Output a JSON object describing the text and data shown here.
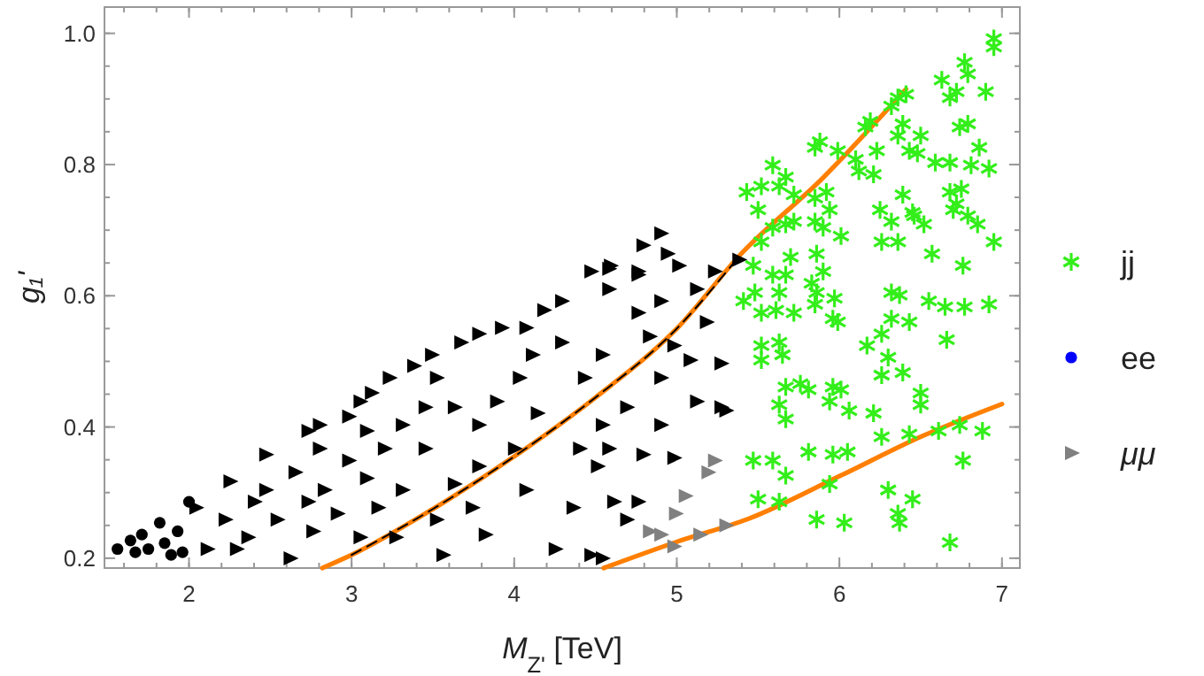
{
  "chart_data": {
    "type": "scatter",
    "xlabel": "M$_{Z'}$ [TeV]",
    "ylabel": "g₁'",
    "xlim": [
      1.48,
      7.11
    ],
    "ylim": [
      0.185,
      1.04
    ],
    "xticks": [
      2,
      3,
      4,
      5,
      6,
      7
    ],
    "yticks": [
      {
        "value": 0.2,
        "label": "0.2"
      },
      {
        "value": 0.4,
        "label": "0.4"
      },
      {
        "value": 0.6,
        "label": "0.6"
      },
      {
        "value": 0.8,
        "label": "0.8"
      },
      {
        "value": 1,
        "label": "1.0"
      }
    ],
    "grid": false,
    "legend": "right",
    "series": [
      {
        "color": "#000000",
        "marker": "circle",
        "x": [
          1.56,
          1.64,
          1.71,
          1.75,
          1.82,
          1.85,
          1.93,
          2.0,
          1.96,
          1.67,
          1.89
        ],
        "values": [
          0.214,
          0.227,
          0.236,
          0.214,
          0.254,
          0.223,
          0.241,
          0.286,
          0.209,
          0.209,
          0.205
        ]
      },
      {
        "color": "#000000",
        "marker": "triangle",
        "x": [
          2.04,
          2.25,
          2.47,
          2.73,
          2.8,
          2.98,
          3.12,
          3.23,
          3.38,
          3.49,
          3.67,
          3.78,
          3.92,
          4.07,
          4.18,
          4.29,
          4.47,
          4.58,
          4.58,
          4.76,
          4.9,
          4.79,
          4.59,
          4.76,
          4.94,
          5.01,
          5.23,
          5.38,
          5.12,
          4.9,
          4.76,
          5.18,
          4.83,
          4.98,
          5.08,
          5.27,
          4.9,
          5.12,
          5.27,
          5.3,
          4.9,
          4.69,
          4.58,
          4.79,
          4.98,
          4.61,
          4.76,
          4.69,
          4.54,
          2.11,
          2.36,
          2.62,
          2.54,
          2.4,
          2.76,
          2.91,
          2.83,
          2.65,
          2.8,
          2.98,
          3.09,
          3.16,
          3.05,
          3.27,
          3.31,
          3.2,
          3.31,
          3.45,
          3.45,
          3.56,
          3.52,
          3.63,
          3.78,
          3.74,
          3.82,
          3.78,
          3.63,
          3.89,
          4.0,
          4.07,
          4.14,
          4.03,
          4.36,
          4.25,
          4.47,
          4.4,
          4.51,
          4.54,
          4.43,
          4.54,
          4.29,
          4.11,
          3.52,
          3.05,
          3.09,
          2.22,
          2.29,
          2.47,
          2.73
        ],
        "values": [
          0.277,
          0.317,
          0.358,
          0.394,
          0.403,
          0.416,
          0.452,
          0.475,
          0.493,
          0.51,
          0.529,
          0.542,
          0.551,
          0.551,
          0.578,
          0.592,
          0.637,
          0.641,
          0.61,
          0.632,
          0.695,
          0.677,
          0.646,
          0.637,
          0.664,
          0.646,
          0.637,
          0.655,
          0.61,
          0.592,
          0.574,
          0.56,
          0.538,
          0.524,
          0.502,
          0.497,
          0.475,
          0.439,
          0.43,
          0.425,
          0.403,
          0.43,
          0.367,
          0.358,
          0.353,
          0.286,
          0.286,
          0.259,
          0.2,
          0.214,
          0.232,
          0.2,
          0.259,
          0.286,
          0.241,
          0.268,
          0.304,
          0.331,
          0.367,
          0.349,
          0.322,
          0.277,
          0.232,
          0.232,
          0.304,
          0.367,
          0.403,
          0.367,
          0.43,
          0.205,
          0.259,
          0.313,
          0.34,
          0.277,
          0.236,
          0.403,
          0.43,
          0.439,
          0.367,
          0.304,
          0.421,
          0.475,
          0.277,
          0.214,
          0.205,
          0.367,
          0.34,
          0.403,
          0.475,
          0.51,
          0.529,
          0.51,
          0.475,
          0.439,
          0.394,
          0.259,
          0.214,
          0.304,
          0.286
        ]
      },
      {
        "name": "jj",
        "color": "#33ee1a",
        "marker": "cross",
        "x": [
          6.95,
          6.95,
          6.77,
          6.79,
          6.63,
          6.9,
          6.72,
          6.68,
          6.41,
          6.36,
          6.32,
          6.19,
          6.16,
          6.39,
          6.79,
          6.74,
          6.86,
          6.5,
          6.36,
          6.43,
          6.48,
          6.23,
          5.88,
          5.85,
          5.99,
          6.1,
          6.12,
          6.21,
          6.59,
          6.68,
          6.81,
          6.92,
          5.59,
          5.67,
          5.63,
          5.52,
          5.43,
          5.5,
          5.72,
          5.85,
          5.92,
          5.94,
          5.72,
          5.85,
          5.67,
          5.9,
          5.59,
          5.52,
          6.01,
          6.25,
          6.39,
          6.45,
          6.46,
          6.52,
          6.32,
          6.26,
          6.36,
          6.57,
          6.7,
          6.68,
          6.75,
          6.72,
          6.79,
          6.85,
          6.76,
          6.95,
          5.7,
          5.47,
          5.41,
          5.48,
          5.59,
          5.67,
          5.63,
          5.52,
          5.61,
          5.72,
          5.86,
          5.9,
          5.83,
          5.86,
          5.97,
          5.96,
          5.99,
          5.85,
          6.32,
          6.37,
          6.32,
          6.43,
          6.55,
          6.65,
          6.77,
          6.92,
          6.26,
          6.17,
          6.66,
          5.52,
          5.52,
          5.63,
          5.65,
          6.3,
          6.26,
          6.39,
          5.67,
          5.76,
          5.81,
          5.96,
          6.01,
          5.94,
          5.63,
          5.67,
          6.06,
          6.21,
          6.5,
          6.5,
          6.26,
          6.43,
          6.61,
          6.88,
          6.74,
          5.47,
          5.59,
          5.67,
          5.81,
          5.96,
          6.05,
          5.94,
          5.5,
          5.63,
          6.3,
          6.45,
          6.76,
          5.86,
          6.03,
          6.36,
          6.37,
          6.68
        ],
        "values": [
          0.992,
          0.979,
          0.956,
          0.938,
          0.929,
          0.911,
          0.911,
          0.902,
          0.907,
          0.902,
          0.889,
          0.866,
          0.857,
          0.862,
          0.862,
          0.857,
          0.826,
          0.844,
          0.844,
          0.821,
          0.817,
          0.821,
          0.835,
          0.826,
          0.821,
          0.808,
          0.79,
          0.785,
          0.803,
          0.803,
          0.799,
          0.794,
          0.799,
          0.781,
          0.767,
          0.767,
          0.758,
          0.731,
          0.754,
          0.749,
          0.758,
          0.731,
          0.713,
          0.713,
          0.709,
          0.704,
          0.704,
          0.682,
          0.691,
          0.731,
          0.754,
          0.727,
          0.722,
          0.709,
          0.713,
          0.682,
          0.682,
          0.664,
          0.731,
          0.758,
          0.763,
          0.74,
          0.722,
          0.709,
          0.646,
          0.682,
          0.659,
          0.646,
          0.592,
          0.605,
          0.632,
          0.632,
          0.605,
          0.574,
          0.578,
          0.574,
          0.664,
          0.637,
          0.619,
          0.605,
          0.596,
          0.565,
          0.56,
          0.587,
          0.605,
          0.601,
          0.565,
          0.56,
          0.592,
          0.583,
          0.583,
          0.587,
          0.542,
          0.524,
          0.533,
          0.524,
          0.502,
          0.529,
          0.51,
          0.506,
          0.479,
          0.483,
          0.461,
          0.466,
          0.457,
          0.461,
          0.457,
          0.439,
          0.434,
          0.412,
          0.425,
          0.421,
          0.452,
          0.434,
          0.385,
          0.389,
          0.394,
          0.394,
          0.403,
          0.349,
          0.349,
          0.326,
          0.362,
          0.358,
          0.362,
          0.313,
          0.29,
          0.286,
          0.304,
          0.29,
          0.349,
          0.259,
          0.254,
          0.268,
          0.254,
          0.224
        ]
      },
      {
        "name": "ee",
        "color": "#0000ff",
        "marker": "circle"
      },
      {
        "name": "μμ",
        "color": "#808080",
        "marker": "triangle",
        "x": [
          5.23,
          5.19,
          5.05,
          4.99,
          4.83,
          4.9,
          4.98,
          5.14,
          5.3
        ],
        "values": [
          0.349,
          0.331,
          0.295,
          0.268,
          0.241,
          0.236,
          0.218,
          0.236,
          0.25
        ]
      },
      {
        "type": "line",
        "color": "#ff7f00",
        "marker": "none",
        "line_style": "solid",
        "x": [
          2.82,
          3.0,
          3.5,
          4.0,
          4.5,
          5.0,
          5.4,
          5.9,
          6.41
        ],
        "values": [
          0.185,
          0.205,
          0.275,
          0.355,
          0.445,
          0.55,
          0.665,
          0.78,
          0.915
        ]
      },
      {
        "type": "line",
        "color": "#ff7f00",
        "marker": "none",
        "line_style": "solid",
        "x": [
          4.55,
          5.0,
          5.44,
          6.0,
          6.5,
          7.0
        ],
        "values": [
          0.185,
          0.225,
          0.26,
          0.325,
          0.385,
          0.435
        ]
      },
      {
        "type": "line",
        "color": "#000000",
        "marker": "none",
        "line_style": "dashed",
        "x": [
          3.0,
          3.5,
          4.0,
          4.5,
          5.0,
          5.35
        ],
        "values": [
          0.205,
          0.275,
          0.355,
          0.445,
          0.55,
          0.65
        ]
      }
    ]
  }
}
